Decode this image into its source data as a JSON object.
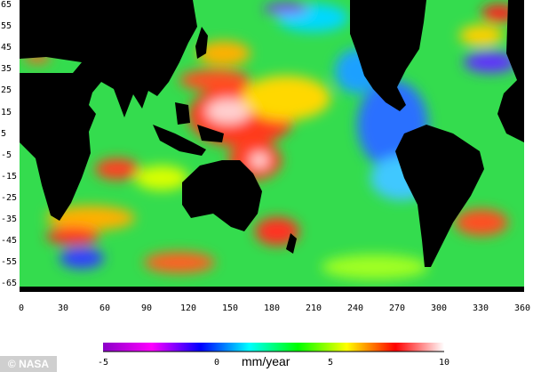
{
  "chart_data": {
    "type": "heatmap",
    "title": "",
    "xlabel": "",
    "ylabel": "",
    "xlim": [
      0,
      360
    ],
    "ylim": [
      -65,
      65
    ],
    "x_ticks": [
      "0",
      "30",
      "60",
      "90",
      "120",
      "150",
      "180",
      "210",
      "240",
      "270",
      "300",
      "330",
      "360"
    ],
    "y_ticks": [
      "65",
      "55",
      "45",
      "35",
      "25",
      "15",
      "5",
      "-5",
      "-15",
      "-25",
      "-35",
      "-45",
      "-55",
      "-65"
    ],
    "colorbar": {
      "label": "mm/year",
      "range": [
        -5,
        10
      ],
      "ticks": [
        "-5",
        "0",
        "5",
        "10"
      ],
      "colors": [
        "#8a00c8",
        "#ff00ff",
        "#0000ff",
        "#00ffff",
        "#00ff00",
        "#ffff00",
        "#ff0000",
        "#ffffff"
      ]
    },
    "land_color": "#000000"
  },
  "credit": "© NASA"
}
